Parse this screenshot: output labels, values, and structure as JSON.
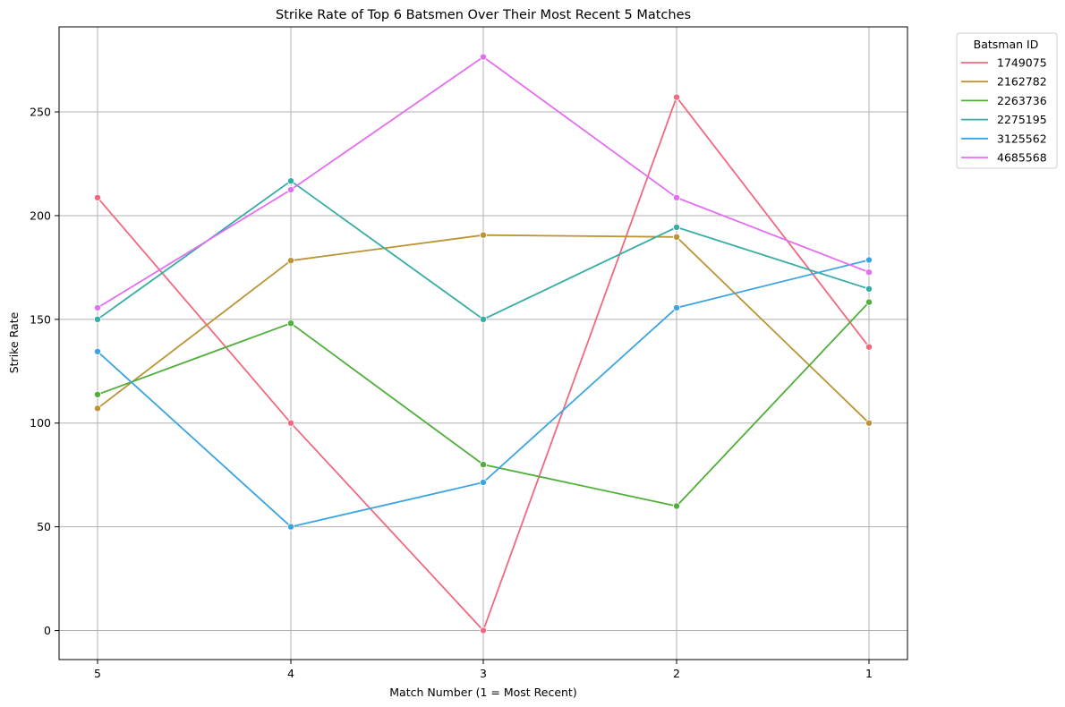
{
  "chart_data": {
    "type": "line",
    "title": "Strike Rate of Top 6 Batsmen Over Their Most Recent 5 Matches",
    "xlabel": "Match Number (1 = Most Recent)",
    "ylabel": "Strike Rate",
    "categories": [
      "5",
      "4",
      "3",
      "2",
      "1"
    ],
    "y_ticks": [
      "0",
      "50",
      "100",
      "150",
      "200",
      "250"
    ],
    "ylim": [
      -14,
      291
    ],
    "grid": true,
    "legend": {
      "title": "Batsman ID",
      "placement": "outside-top-right"
    },
    "series": [
      {
        "name": "1749075",
        "color": "#f0697f",
        "values": [
          208.7,
          100.0,
          0.0,
          257.1,
          136.7
        ]
      },
      {
        "name": "2162782",
        "color": "#bb9435",
        "values": [
          107.1,
          178.3,
          190.6,
          189.7,
          100.0
        ]
      },
      {
        "name": "2263736",
        "color": "#4faf3a",
        "values": [
          113.8,
          148.1,
          80.0,
          60.0,
          158.3
        ]
      },
      {
        "name": "2275195",
        "color": "#36ada4",
        "values": [
          150.0,
          216.7,
          150.0,
          194.4,
          164.7
        ]
      },
      {
        "name": "3125562",
        "color": "#3ca4e2",
        "values": [
          134.5,
          50.0,
          71.4,
          155.6,
          178.6
        ]
      },
      {
        "name": "4685568",
        "color": "#e46ef2",
        "values": [
          155.6,
          212.5,
          276.5,
          208.7,
          172.7
        ]
      }
    ]
  }
}
